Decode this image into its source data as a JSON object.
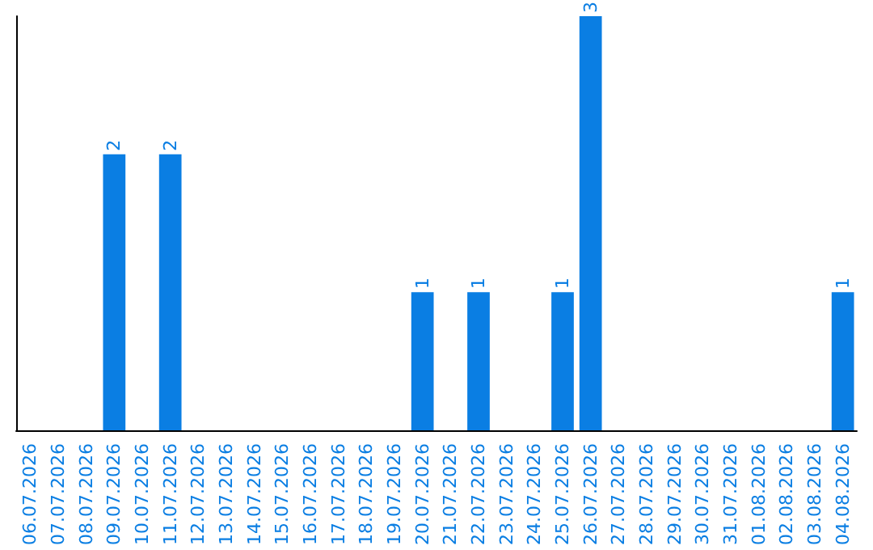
{
  "chart_data": {
    "type": "bar",
    "categories": [
      "06.07.2026",
      "07.07.2026",
      "08.07.2026",
      "09.07.2026",
      "10.07.2026",
      "11.07.2026",
      "12.07.2026",
      "13.07.2026",
      "14.07.2026",
      "15.07.2026",
      "16.07.2026",
      "17.07.2026",
      "18.07.2026",
      "19.07.2026",
      "20.07.2026",
      "21.07.2026",
      "22.07.2026",
      "23.07.2026",
      "24.07.2026",
      "25.07.2026",
      "26.07.2026",
      "27.07.2026",
      "28.07.2026",
      "29.07.2026",
      "30.07.2026",
      "31.07.2026",
      "01.08.2026",
      "02.08.2026",
      "03.08.2026",
      "04.08.2026"
    ],
    "values": [
      0,
      0,
      0,
      2,
      0,
      2,
      0,
      0,
      0,
      0,
      0,
      0,
      0,
      0,
      1,
      0,
      1,
      0,
      0,
      1,
      3,
      0,
      0,
      0,
      0,
      0,
      0,
      0,
      0,
      1
    ],
    "value_labels": [
      null,
      null,
      null,
      "2",
      null,
      "2",
      null,
      null,
      null,
      null,
      null,
      null,
      null,
      null,
      "1",
      null,
      "1",
      null,
      null,
      "1",
      "3",
      null,
      null,
      null,
      null,
      null,
      null,
      null,
      null,
      "1"
    ],
    "color": "#0a7ee3",
    "tick_labels": "x"
  }
}
